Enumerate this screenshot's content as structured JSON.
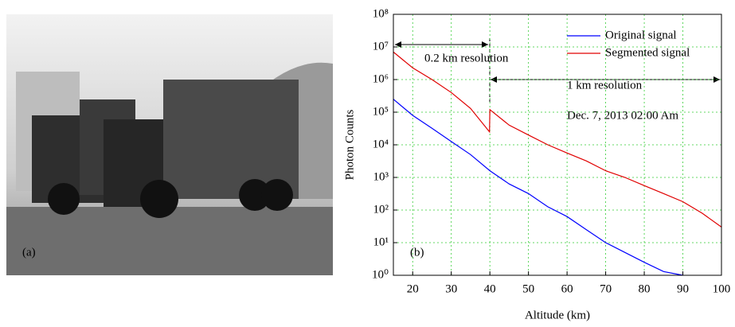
{
  "photo": {
    "label": "(a)"
  },
  "chart_data": {
    "type": "line",
    "panel_label": "(b)",
    "x_label": "Altitude (km)",
    "y_label": "Photon Counts",
    "xlim": [
      15,
      100
    ],
    "xticks": [
      20,
      30,
      40,
      50,
      60,
      70,
      80,
      90,
      100
    ],
    "ylim": [
      1,
      100000000
    ],
    "log_y": true,
    "yticks": [
      {
        "value": 1,
        "label": "10⁰"
      },
      {
        "value": 10,
        "label": "10¹"
      },
      {
        "value": 100,
        "label": "10²"
      },
      {
        "value": 1000,
        "label": "10³"
      },
      {
        "value": 10000,
        "label": "10⁴"
      },
      {
        "value": 100000,
        "label": "10⁵"
      },
      {
        "value": 1000000,
        "label": "10⁶"
      },
      {
        "value": 10000000,
        "label": "10⁷"
      },
      {
        "value": 100000000,
        "label": "10⁸"
      }
    ],
    "grid": true,
    "legend": "upper right",
    "series": [
      {
        "name": "Original signal",
        "color": "#0000ff",
        "x": [
          15,
          20,
          25,
          30,
          35,
          40,
          45,
          50,
          55,
          60,
          65,
          70,
          75,
          80,
          85,
          90
        ],
        "values": [
          250000,
          80000,
          32000,
          12600,
          5000,
          1600,
          630,
          320,
          126,
          63,
          25,
          10,
          5,
          2.5,
          1.3,
          1
        ]
      },
      {
        "name": "Segmented signal",
        "color": "#e00000",
        "x": [
          15,
          20,
          25,
          30,
          35,
          39.9,
          40,
          45,
          50,
          55,
          60,
          65,
          70,
          75,
          80,
          85,
          90,
          95,
          100
        ],
        "values": [
          7000000,
          2300000,
          1000000,
          400000,
          130000,
          25000,
          120000,
          40000,
          20000,
          10000,
          5600,
          3200,
          1600,
          1000,
          560,
          320,
          180,
          80,
          30
        ]
      }
    ],
    "annotations": [
      "0.2 km resolution",
      "1 km resolution",
      "Dec. 7, 2013 02:00 Am"
    ]
  }
}
